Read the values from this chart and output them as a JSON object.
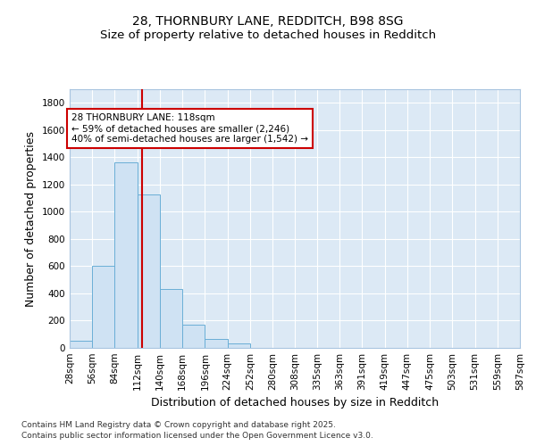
{
  "title_line1": "28, THORNBURY LANE, REDDITCH, B98 8SG",
  "title_line2": "Size of property relative to detached houses in Redditch",
  "xlabel": "Distribution of detached houses by size in Redditch",
  "ylabel": "Number of detached properties",
  "bar_values": [
    55,
    600,
    1365,
    1125,
    430,
    170,
    65,
    35,
    0,
    0,
    0,
    0,
    0,
    0,
    0,
    0,
    0,
    0,
    0,
    0
  ],
  "bin_edges": [
    28,
    56,
    84,
    112,
    140,
    168,
    196,
    224,
    252,
    280,
    308,
    335,
    363,
    391,
    419,
    447,
    475,
    503,
    531,
    559,
    587
  ],
  "tick_labels": [
    "28sqm",
    "56sqm",
    "84sqm",
    "112sqm",
    "140sqm",
    "168sqm",
    "196sqm",
    "224sqm",
    "252sqm",
    "280sqm",
    "308sqm",
    "335sqm",
    "363sqm",
    "391sqm",
    "419sqm",
    "447sqm",
    "475sqm",
    "503sqm",
    "531sqm",
    "559sqm",
    "587sqm"
  ],
  "bar_color": "#cfe2f3",
  "bar_edge_color": "#6aaed6",
  "plot_bg_color": "#dce9f5",
  "fig_bg_color": "#ffffff",
  "grid_color": "#ffffff",
  "vline_x": 118,
  "vline_color": "#cc0000",
  "annotation_text": "28 THORNBURY LANE: 118sqm\n← 59% of detached houses are smaller (2,246)\n40% of semi-detached houses are larger (1,542) →",
  "annotation_box_edgecolor": "#cc0000",
  "annotation_box_facecolor": "#ffffff",
  "ylim": [
    0,
    1900
  ],
  "yticks": [
    0,
    200,
    400,
    600,
    800,
    1000,
    1200,
    1400,
    1600,
    1800
  ],
  "footer_text": "Contains HM Land Registry data © Crown copyright and database right 2025.\nContains public sector information licensed under the Open Government Licence v3.0.",
  "title_fontsize": 10,
  "subtitle_fontsize": 9.5,
  "axis_label_fontsize": 9,
  "tick_fontsize": 7.5,
  "annotation_fontsize": 7.5,
  "footer_fontsize": 6.5
}
